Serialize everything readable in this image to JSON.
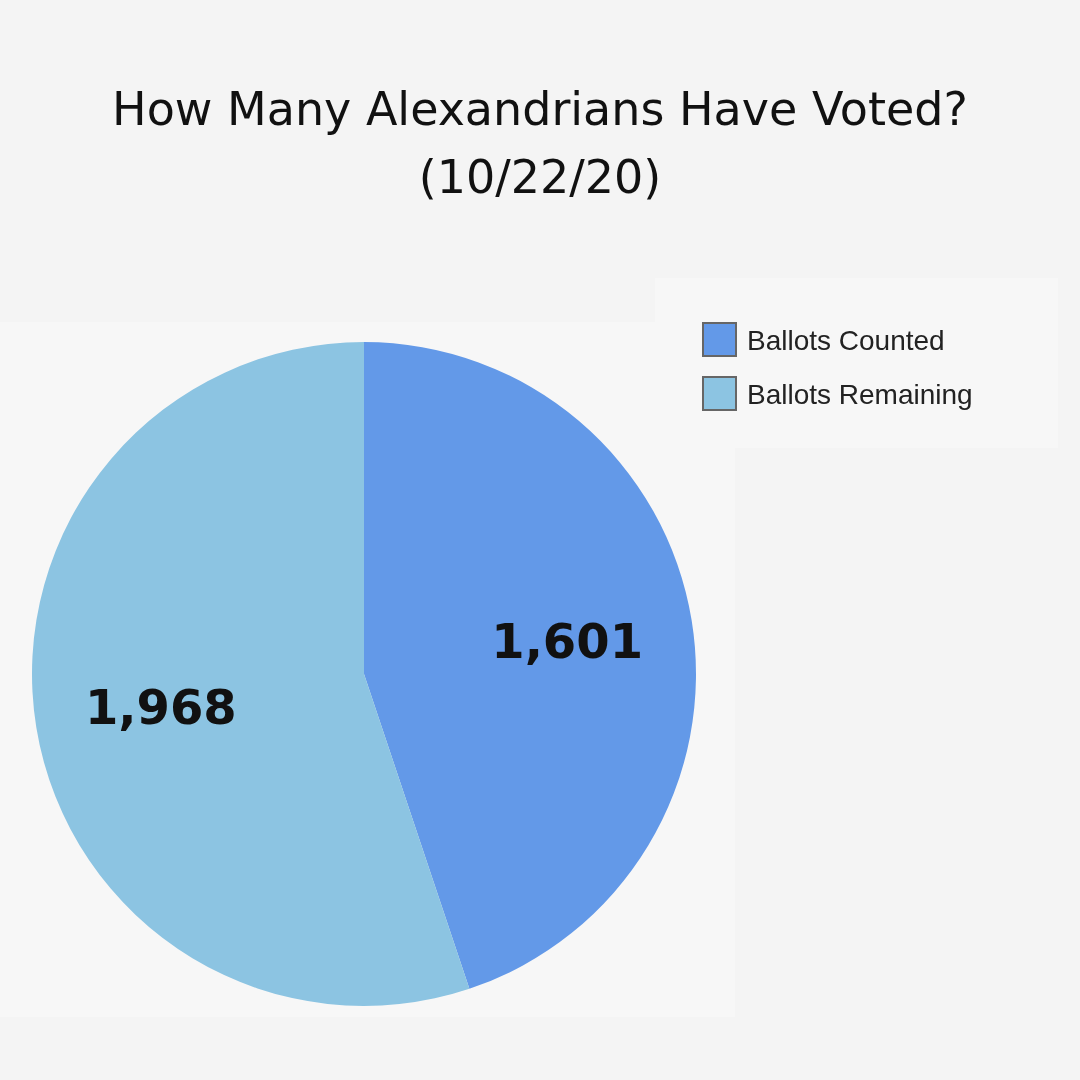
{
  "chart_data": {
    "type": "pie",
    "title": "How Many Alexandrians Have Voted?\n(10/22/20)",
    "categories": [
      "Ballots Counted",
      "Ballots Remaining"
    ],
    "values": [
      1601,
      1968
    ],
    "value_labels": [
      "1,601",
      "1,968"
    ],
    "colors": [
      "#6399e8",
      "#8cc4e2"
    ],
    "legend": "top right"
  }
}
